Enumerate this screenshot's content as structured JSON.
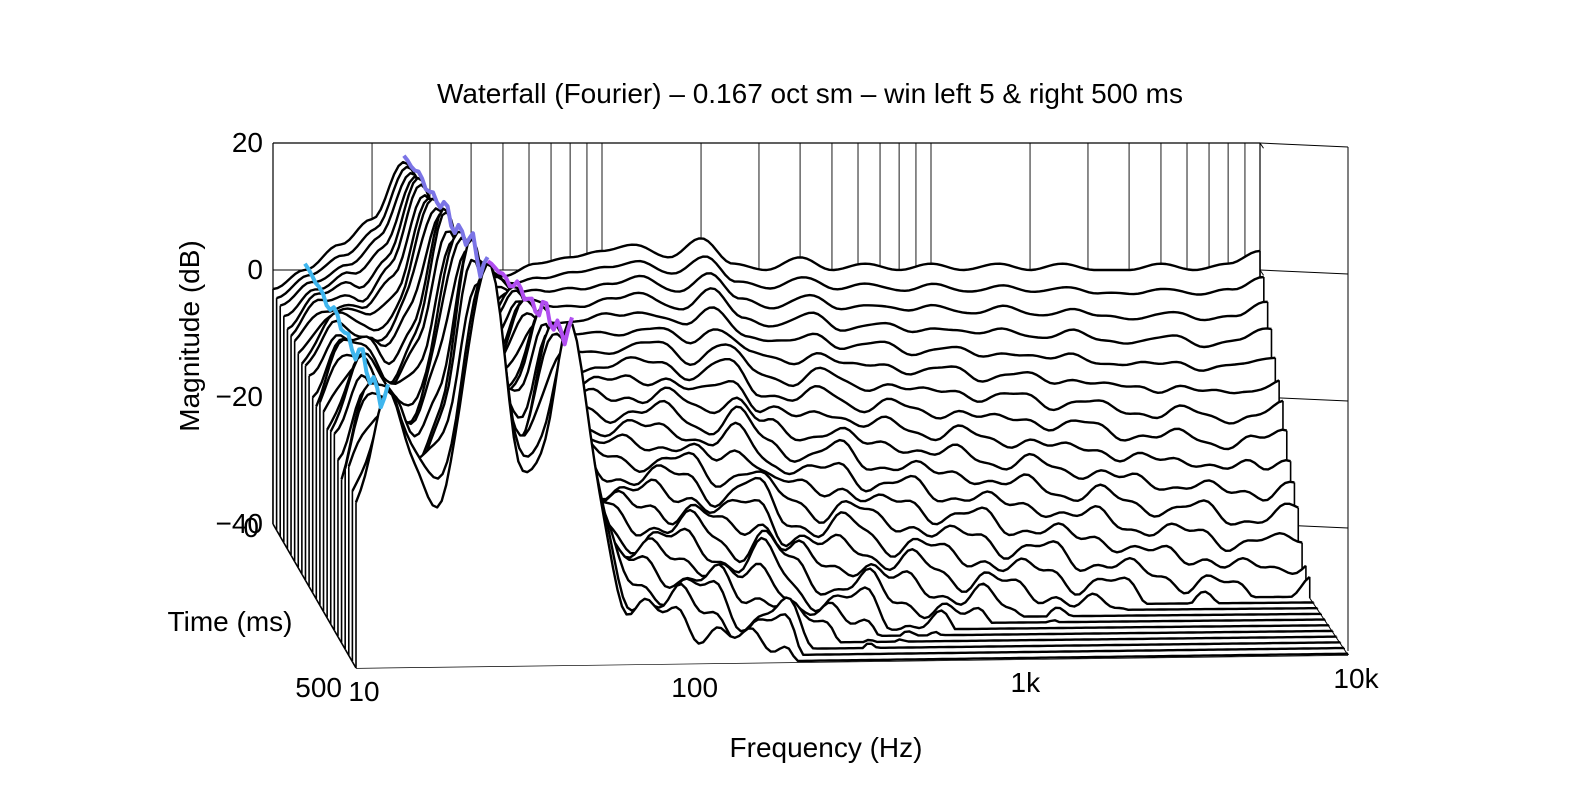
{
  "chart_data": {
    "type": "waterfall",
    "title": "Waterfall (Fourier) – 0.167 oct sm – win left 5 & right 500 ms",
    "xlabel": "Frequency (Hz)",
    "ylabel": "Magnitude (dB)",
    "zlabel": "Time (ms)",
    "x_scale": "log",
    "xlim": [
      10,
      10000
    ],
    "ylim": [
      -40,
      20
    ],
    "zlim": [
      0,
      500
    ],
    "x_ticks": [
      {
        "value": 10,
        "label": "10"
      },
      {
        "value": 100,
        "label": "100"
      },
      {
        "value": 1000,
        "label": "1k"
      },
      {
        "value": 10000,
        "label": "10k"
      }
    ],
    "y_ticks": [
      {
        "value": 20,
        "label": "20"
      },
      {
        "value": 0,
        "label": "0"
      },
      {
        "value": -20,
        "label": "−20"
      },
      {
        "value": -40,
        "label": "−40"
      }
    ],
    "z_ticks": [
      {
        "value": 0,
        "label": "0"
      },
      {
        "value": 500,
        "label": "500"
      }
    ],
    "grid": true,
    "slice_count": 24,
    "slice_spacing_ms": 21.7,
    "base_floor_db": -40,
    "resonances": [
      {
        "freq_hz": 12.5,
        "peak_db": 2,
        "color": "#3fb6ee"
      },
      {
        "freq_hz": 25,
        "peak_db": 17,
        "color": "#7b74e6"
      },
      {
        "freq_hz": 45,
        "peak_db": 0,
        "color": "#b14ef0"
      }
    ],
    "first_slice_profile": [
      {
        "f": 10,
        "db": -3
      },
      {
        "f": 12.5,
        "db": 0
      },
      {
        "f": 16,
        "db": 4
      },
      {
        "f": 20,
        "db": 8
      },
      {
        "f": 25,
        "db": 17
      },
      {
        "f": 31.5,
        "db": 7
      },
      {
        "f": 40,
        "db": 2
      },
      {
        "f": 50,
        "db": -1
      },
      {
        "f": 63,
        "db": 1
      },
      {
        "f": 80,
        "db": 2
      },
      {
        "f": 100,
        "db": 3
      },
      {
        "f": 125,
        "db": 4
      },
      {
        "f": 160,
        "db": 2
      },
      {
        "f": 200,
        "db": 5
      },
      {
        "f": 250,
        "db": 1
      },
      {
        "f": 315,
        "db": 0
      },
      {
        "f": 400,
        "db": 2
      },
      {
        "f": 500,
        "db": 0
      },
      {
        "f": 630,
        "db": 1
      },
      {
        "f": 800,
        "db": 0
      },
      {
        "f": 1000,
        "db": 1
      },
      {
        "f": 1250,
        "db": 0
      },
      {
        "f": 1600,
        "db": 1
      },
      {
        "f": 2000,
        "db": 0
      },
      {
        "f": 2500,
        "db": 1
      },
      {
        "f": 3150,
        "db": 0
      },
      {
        "f": 4000,
        "db": 0
      },
      {
        "f": 5000,
        "db": 1
      },
      {
        "f": 6300,
        "db": 0
      },
      {
        "f": 8000,
        "db": 1
      },
      {
        "f": 10000,
        "db": 3
      }
    ]
  }
}
